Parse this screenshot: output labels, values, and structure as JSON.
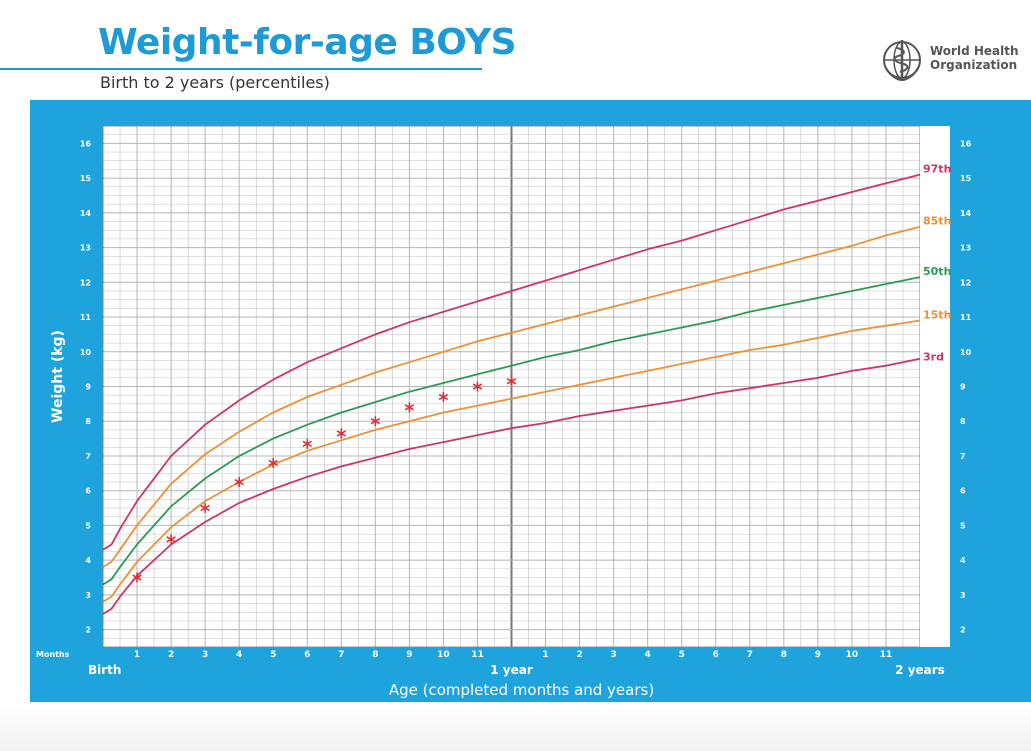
{
  "header": {
    "title": "Weight-for-age BOYS",
    "subtitle": "Birth to 2 years (percentiles)",
    "org_name_line1": "World Health",
    "org_name_line2": "Organization",
    "org_logo_icon": "who-emblem-icon"
  },
  "colors": {
    "title_blue": "#1e9ad6",
    "panel_blue": "#1ea3dd",
    "grid_line": "#aaaaaa",
    "p3_p97": "#cf3466",
    "p15_p85": "#ef9035",
    "p50": "#2b9a54",
    "marker": "#e0303a"
  },
  "chart_data": {
    "type": "line",
    "title": "Weight-for-age BOYS",
    "subtitle": "Birth to 2 years (percentiles)",
    "xlabel": "Age (completed months and years)",
    "ylabel": "Weight (kg)",
    "x_unit_label": "Months",
    "xlim": [
      0,
      24
    ],
    "ylim": [
      1.5,
      16.5
    ],
    "y_ticks": [
      2,
      3,
      4,
      5,
      6,
      7,
      8,
      9,
      10,
      11,
      12,
      13,
      14,
      15,
      16
    ],
    "x_tick_labels": [
      {
        "x": 0,
        "label": "Birth"
      },
      {
        "x": 1,
        "label": "1"
      },
      {
        "x": 2,
        "label": "2"
      },
      {
        "x": 3,
        "label": "3"
      },
      {
        "x": 4,
        "label": "4"
      },
      {
        "x": 5,
        "label": "5"
      },
      {
        "x": 6,
        "label": "6"
      },
      {
        "x": 7,
        "label": "7"
      },
      {
        "x": 8,
        "label": "8"
      },
      {
        "x": 9,
        "label": "9"
      },
      {
        "x": 10,
        "label": "10"
      },
      {
        "x": 11,
        "label": "11"
      },
      {
        "x": 12,
        "label": "1 year"
      },
      {
        "x": 13,
        "label": "1"
      },
      {
        "x": 14,
        "label": "2"
      },
      {
        "x": 15,
        "label": "3"
      },
      {
        "x": 16,
        "label": "4"
      },
      {
        "x": 17,
        "label": "5"
      },
      {
        "x": 18,
        "label": "6"
      },
      {
        "x": 19,
        "label": "7"
      },
      {
        "x": 20,
        "label": "8"
      },
      {
        "x": 21,
        "label": "9"
      },
      {
        "x": 22,
        "label": "10"
      },
      {
        "x": 23,
        "label": "11"
      },
      {
        "x": 24,
        "label": "2 years"
      }
    ],
    "grid": true,
    "x": [
      0,
      0.25,
      0.5,
      1,
      2,
      3,
      4,
      5,
      6,
      7,
      8,
      9,
      10,
      11,
      12,
      13,
      14,
      15,
      16,
      17,
      18,
      19,
      20,
      21,
      22,
      23,
      24
    ],
    "series": [
      {
        "name": "97th",
        "color": "#cf3466",
        "values": [
          4.3,
          4.45,
          4.9,
          5.7,
          7.0,
          7.9,
          8.6,
          9.2,
          9.7,
          10.1,
          10.5,
          10.85,
          11.15,
          11.45,
          11.75,
          12.05,
          12.35,
          12.65,
          12.95,
          13.2,
          13.5,
          13.8,
          14.1,
          14.35,
          14.6,
          14.85,
          15.1
        ]
      },
      {
        "name": "85th",
        "color": "#ef9035",
        "values": [
          3.8,
          3.95,
          4.3,
          5.0,
          6.2,
          7.05,
          7.7,
          8.25,
          8.7,
          9.05,
          9.4,
          9.7,
          10.0,
          10.3,
          10.55,
          10.8,
          11.05,
          11.3,
          11.55,
          11.8,
          12.05,
          12.3,
          12.55,
          12.8,
          13.05,
          13.35,
          13.6
        ]
      },
      {
        "name": "50th",
        "color": "#2b9a54",
        "values": [
          3.3,
          3.45,
          3.8,
          4.45,
          5.55,
          6.35,
          7.0,
          7.5,
          7.9,
          8.25,
          8.55,
          8.85,
          9.1,
          9.35,
          9.6,
          9.85,
          10.05,
          10.3,
          10.5,
          10.7,
          10.9,
          11.15,
          11.35,
          11.55,
          11.75,
          11.95,
          12.15
        ]
      },
      {
        "name": "15th",
        "color": "#ef9035",
        "values": [
          2.8,
          2.95,
          3.3,
          3.95,
          4.95,
          5.7,
          6.25,
          6.75,
          7.15,
          7.45,
          7.75,
          8.0,
          8.25,
          8.45,
          8.65,
          8.85,
          9.05,
          9.25,
          9.45,
          9.65,
          9.85,
          10.05,
          10.2,
          10.4,
          10.6,
          10.75,
          10.9
        ]
      },
      {
        "name": "3rd",
        "color": "#cf3466",
        "values": [
          2.45,
          2.6,
          2.95,
          3.55,
          4.45,
          5.1,
          5.65,
          6.05,
          6.4,
          6.7,
          6.95,
          7.2,
          7.4,
          7.6,
          7.8,
          7.95,
          8.15,
          8.3,
          8.45,
          8.6,
          8.8,
          8.95,
          9.1,
          9.25,
          9.45,
          9.6,
          9.8
        ]
      }
    ],
    "markers": {
      "symbol": "*",
      "color": "#e0303a",
      "x": [
        1,
        2,
        3,
        4,
        5,
        6,
        7,
        8,
        9,
        10,
        11,
        12
      ],
      "y": [
        3.5,
        4.6,
        5.5,
        6.25,
        6.8,
        7.35,
        7.65,
        8.0,
        8.4,
        8.7,
        9.0,
        9.15
      ]
    }
  }
}
